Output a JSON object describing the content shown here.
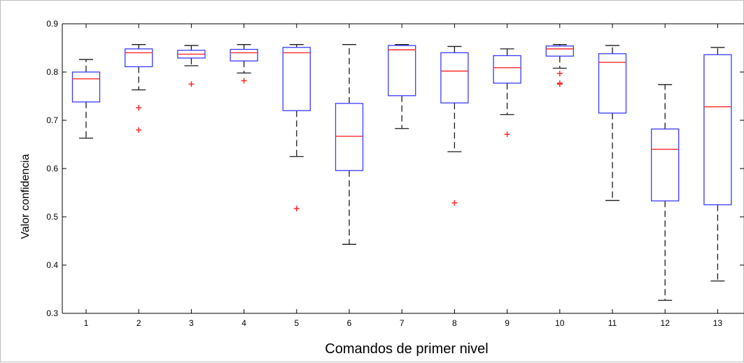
{
  "chart_data": {
    "type": "boxplot",
    "xlabel": "Comandos de primer nivel",
    "ylabel": "Valor confidencia",
    "ylim": [
      0.3,
      0.9
    ],
    "yticks": [
      "0.3",
      "0.4",
      "0.5",
      "0.6",
      "0.7",
      "0.8",
      "0.9"
    ],
    "categories": [
      "1",
      "2",
      "3",
      "4",
      "5",
      "6",
      "7",
      "8",
      "9",
      "10",
      "11",
      "12",
      "13"
    ],
    "boxes": [
      {
        "category": "1",
        "whisker_low": 0.663,
        "q1": 0.738,
        "median": 0.786,
        "q3": 0.8,
        "whisker_high": 0.826,
        "outliers": []
      },
      {
        "category": "2",
        "whisker_low": 0.763,
        "q1": 0.811,
        "median": 0.84,
        "q3": 0.848,
        "whisker_high": 0.857,
        "outliers": [
          0.726,
          0.68
        ]
      },
      {
        "category": "3",
        "whisker_low": 0.813,
        "q1": 0.829,
        "median": 0.837,
        "q3": 0.845,
        "whisker_high": 0.855,
        "outliers": [
          0.775
        ]
      },
      {
        "category": "4",
        "whisker_low": 0.798,
        "q1": 0.823,
        "median": 0.84,
        "q3": 0.847,
        "whisker_high": 0.857,
        "outliers": [
          0.782
        ]
      },
      {
        "category": "5",
        "whisker_low": 0.625,
        "q1": 0.72,
        "median": 0.84,
        "q3": 0.851,
        "whisker_high": 0.857,
        "outliers": [
          0.517
        ]
      },
      {
        "category": "6",
        "whisker_low": 0.443,
        "q1": 0.596,
        "median": 0.667,
        "q3": 0.735,
        "whisker_high": 0.857,
        "outliers": []
      },
      {
        "category": "7",
        "whisker_low": 0.683,
        "q1": 0.751,
        "median": 0.846,
        "q3": 0.855,
        "whisker_high": 0.857,
        "outliers": []
      },
      {
        "category": "8",
        "whisker_low": 0.635,
        "q1": 0.736,
        "median": 0.802,
        "q3": 0.84,
        "whisker_high": 0.853,
        "outliers": [
          0.529
        ]
      },
      {
        "category": "9",
        "whisker_low": 0.712,
        "q1": 0.777,
        "median": 0.809,
        "q3": 0.834,
        "whisker_high": 0.848,
        "outliers": [
          0.671
        ]
      },
      {
        "category": "10",
        "whisker_low": 0.808,
        "q1": 0.833,
        "median": 0.848,
        "q3": 0.854,
        "whisker_high": 0.857,
        "outliers": [
          0.797,
          0.777,
          0.775
        ]
      },
      {
        "category": "11",
        "whisker_low": 0.534,
        "q1": 0.715,
        "median": 0.82,
        "q3": 0.838,
        "whisker_high": 0.855,
        "outliers": []
      },
      {
        "category": "12",
        "whisker_low": 0.327,
        "q1": 0.533,
        "median": 0.64,
        "q3": 0.682,
        "whisker_high": 0.774,
        "outliers": []
      },
      {
        "category": "13",
        "whisker_low": 0.367,
        "q1": 0.525,
        "median": 0.728,
        "q3": 0.836,
        "whisker_high": 0.851,
        "outliers": []
      }
    ],
    "grid": false,
    "colors": {
      "box": "#3a3aff",
      "median": "#ff2a2a",
      "whisker": "#1a1a1a",
      "outlier": "#ff2a2a",
      "axis": "#000000"
    }
  }
}
